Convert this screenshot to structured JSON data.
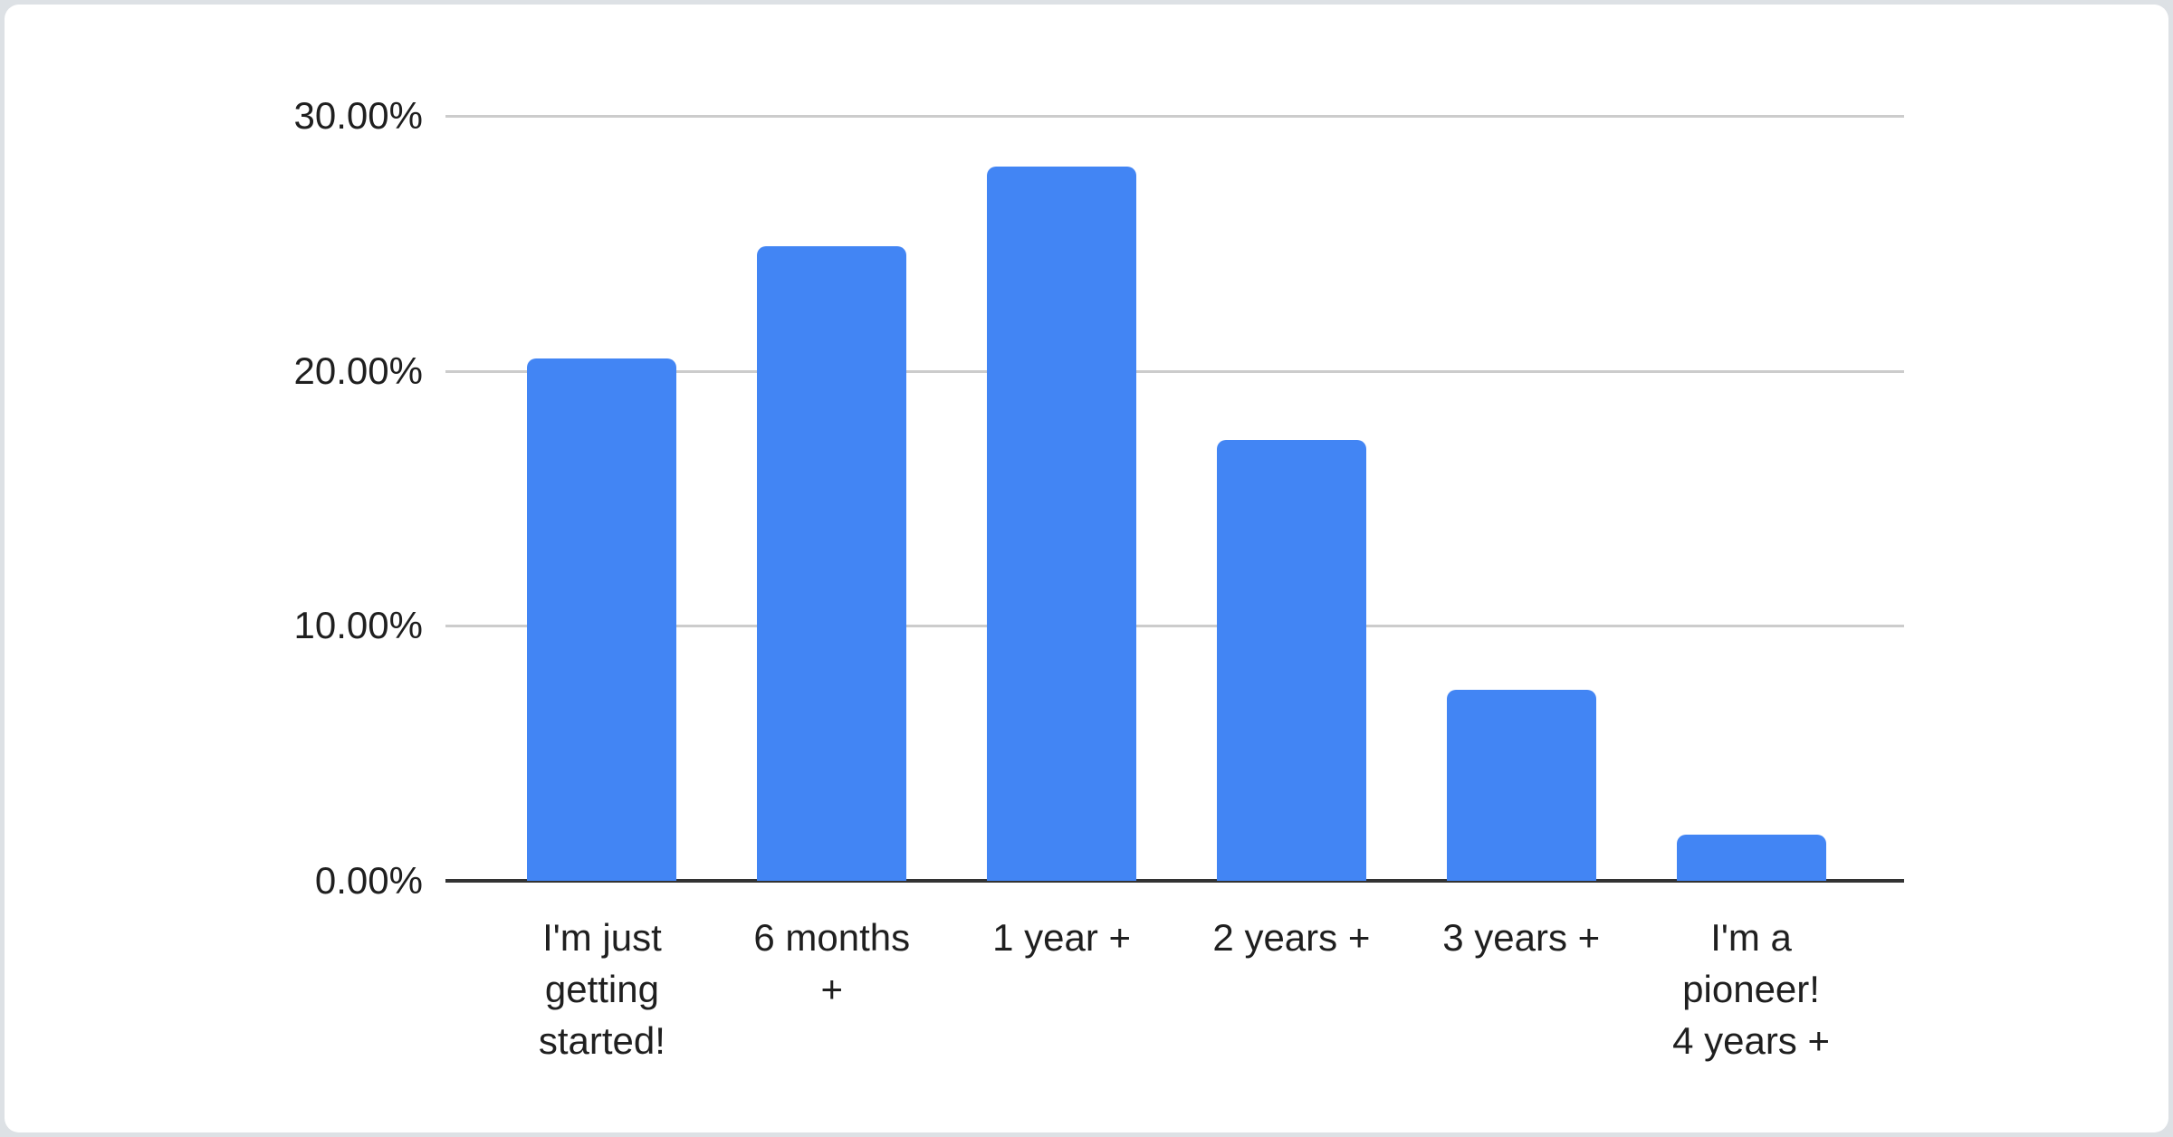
{
  "chart_data": {
    "type": "bar",
    "title": "",
    "categories": [
      "I'm just\ngetting\nstarted!",
      "6 months\n+",
      "1 year +",
      "2 years +",
      "3 years +",
      "I'm a\npioneer!\n4 years +"
    ],
    "values": [
      20.5,
      24.9,
      28.0,
      17.3,
      7.5,
      1.8
    ],
    "value_unit": "%",
    "xlabel": "",
    "ylabel": "",
    "ylim": [
      0,
      30
    ],
    "yticks": [
      {
        "value": 0,
        "label": "0.00%"
      },
      {
        "value": 10,
        "label": "10.00%"
      },
      {
        "value": 20,
        "label": "20.00%"
      },
      {
        "value": 30,
        "label": "30.00%"
      }
    ],
    "grid": true,
    "legend_position": "none",
    "colors": {
      "bar": "#4285f4",
      "gridline": "#cccccc",
      "axis_line": "#333333",
      "label_text": "#1f1f1f",
      "card_background": "#ffffff",
      "page_background": "#dde1e5"
    }
  }
}
